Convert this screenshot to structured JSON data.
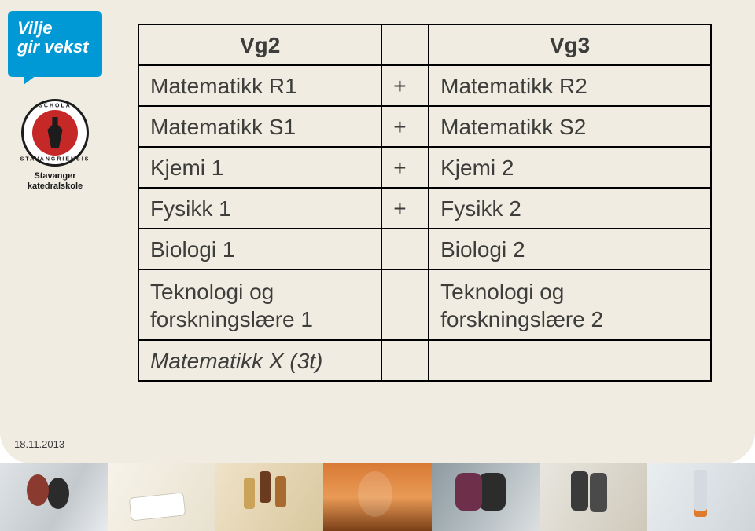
{
  "logo": {
    "line1": "Vilje",
    "line2": "gir vekst",
    "bg": "#0099d6",
    "text_color": "#ffffff"
  },
  "crest": {
    "caption_line1": "Stavanger",
    "caption_line2": "katedralskole",
    "ring_top": "SCHOLA",
    "ring_bottom": "STAVANGRIENSIS",
    "inner_color": "#c62828"
  },
  "table": {
    "header": {
      "col_a": "Vg2",
      "col_c": "Vg3"
    },
    "rows": [
      {
        "a": "Matematikk R1",
        "plus": "+",
        "c": "Matematikk R2"
      },
      {
        "a": "Matematikk S1",
        "plus": "+",
        "c": "Matematikk S2"
      },
      {
        "a": "Kjemi 1",
        "plus": "+",
        "c": "Kjemi 2"
      },
      {
        "a": "Fysikk 1",
        "plus": "+",
        "c": "Fysikk 2"
      },
      {
        "a": "Biologi 1",
        "plus": "",
        "c": "Biologi 2"
      },
      {
        "a": "Teknologi og\nforskningslære 1",
        "plus": "",
        "c": "Teknologi og\nforskningslære 2"
      },
      {
        "a": "Matematikk X (3t)",
        "a_italic": true,
        "plus": "",
        "c": ""
      }
    ],
    "border_color": "#000000",
    "text_color": "#3d3d3b",
    "font_size_pt": 21
  },
  "date": "18.11.2013",
  "background": {
    "panel_color": "#f0ece1"
  },
  "photo_strip": {
    "tiles": 7
  }
}
